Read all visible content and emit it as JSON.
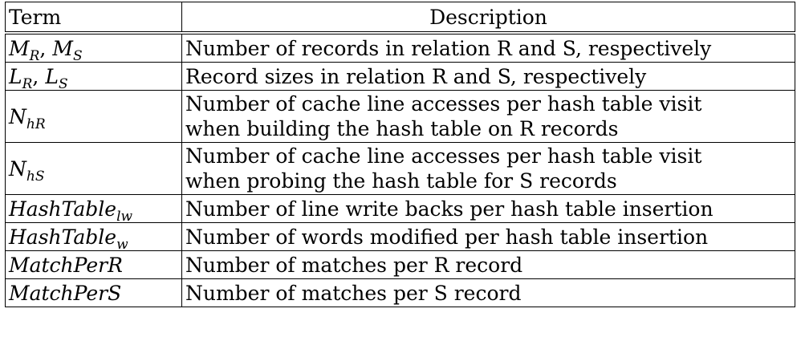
{
  "header": {
    "term": "Term",
    "description": "Description"
  },
  "rows": [
    {
      "term_main_a": "M",
      "term_sub_a": "R",
      "term_sep": ", ",
      "term_main_b": "M",
      "term_sub_b": "S",
      "desc_lines": [
        "Number of records in relation R and S, respectively"
      ]
    },
    {
      "term_main_a": "L",
      "term_sub_a": "R",
      "term_sep": ", ",
      "term_main_b": "L",
      "term_sub_b": "S",
      "desc_lines": [
        "Record sizes in relation R and S, respectively"
      ]
    },
    {
      "term_main_a": "N",
      "term_sub_a": "hR",
      "desc_lines": [
        "Number of cache line accesses per hash table visit",
        "when building the hash table on R records"
      ]
    },
    {
      "term_main_a": "N",
      "term_sub_a": "hS",
      "desc_lines": [
        "Number of cache line accesses per hash table visit",
        "when probing the hash table for S records"
      ]
    },
    {
      "term_main_a": "HashTable",
      "term_sub_a": "lw",
      "desc_lines": [
        "Number of line write backs per hash table insertion"
      ]
    },
    {
      "term_main_a": "HashTable",
      "term_sub_a": "w",
      "desc_lines": [
        "Number of words modified per hash table insertion"
      ]
    },
    {
      "term_main_a": "MatchPerR",
      "desc_lines": [
        "Number of matches per R record"
      ]
    },
    {
      "term_main_a": "MatchPerS",
      "desc_lines": [
        "Number of matches per S record"
      ]
    }
  ]
}
